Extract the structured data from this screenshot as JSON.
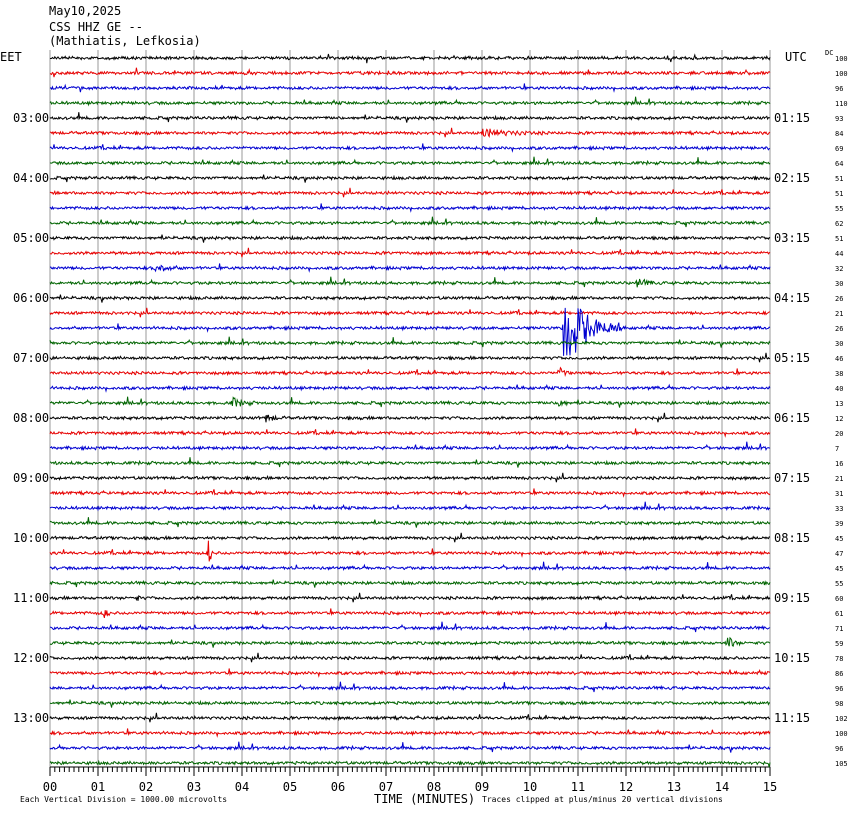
{
  "header": {
    "date": "May10,2025",
    "station": "CSS HHZ GE --",
    "location": "(Mathiatis, Lefkosia)"
  },
  "labels": {
    "left_tz": "EET",
    "right_tz": "UTC",
    "dc": "DC",
    "xlabel": "TIME (MINUTES)",
    "scale_note": "Each Vertical Division = 1000.00 microvolts",
    "clip_note": "Traces clipped at plus/minus 20 vertical divisions"
  },
  "chart_data": {
    "type": "line",
    "xlabel": "TIME (MINUTES)",
    "xlim": [
      0,
      15
    ],
    "x_ticks": [
      "00",
      "01",
      "02",
      "03",
      "04",
      "05",
      "06",
      "07",
      "08",
      "09",
      "10",
      "11",
      "12",
      "13",
      "14",
      "15"
    ],
    "trace_count": 48,
    "trace_colors": [
      "#000000",
      "#e60000",
      "#0000d0",
      "#006400"
    ],
    "left_hour_labels": [
      "03:00",
      "04:00",
      "05:00",
      "06:00",
      "07:00",
      "08:00",
      "09:00",
      "10:00",
      "11:00",
      "12:00",
      "13:00"
    ],
    "right_hour_labels": [
      "01:15",
      "02:15",
      "03:15",
      "04:15",
      "05:15",
      "06:15",
      "07:15",
      "08:15",
      "09:15",
      "10:15",
      "11:15"
    ],
    "dc_offsets": [
      "100",
      "100",
      "96",
      "110",
      "93",
      "84",
      "69",
      "64",
      "51",
      "51",
      "55",
      "62",
      "51",
      "44",
      "32",
      "30",
      "26",
      "21",
      "26",
      "30",
      "46",
      "38",
      "40",
      "13",
      "12",
      "20",
      "7",
      "16",
      "21",
      "31",
      "33",
      "39",
      "45",
      "47",
      "45",
      "55",
      "60",
      "61",
      "71",
      "59",
      "78",
      "86",
      "96",
      "98",
      "102",
      "100",
      "96",
      "105"
    ],
    "events": [
      {
        "trace": 18,
        "minute": 10.7,
        "amp": 45,
        "dur": 1.2,
        "note": "large earthquake"
      },
      {
        "trace": 21,
        "minute": 10.6,
        "amp": 6,
        "dur": 0.3
      },
      {
        "trace": 23,
        "minute": 10.6,
        "amp": 10,
        "dur": 0.2
      },
      {
        "trace": 33,
        "minute": 3.3,
        "amp": 14,
        "dur": 0.15
      },
      {
        "trace": 5,
        "minute": 9.0,
        "amp": 4,
        "dur": 1.4
      },
      {
        "trace": 14,
        "minute": 2.2,
        "amp": 5,
        "dur": 0.6
      },
      {
        "trace": 15,
        "minute": 12.2,
        "amp": 5,
        "dur": 0.5
      },
      {
        "trace": 23,
        "minute": 3.8,
        "amp": 5,
        "dur": 0.5
      },
      {
        "trace": 37,
        "minute": 1.1,
        "amp": 7,
        "dur": 0.2
      },
      {
        "trace": 39,
        "minute": 14.1,
        "amp": 8,
        "dur": 0.3
      },
      {
        "trace": 24,
        "minute": 4.5,
        "amp": 4,
        "dur": 0.4
      },
      {
        "trace": 36,
        "minute": 1.8,
        "amp": 5,
        "dur": 0.1
      }
    ]
  }
}
